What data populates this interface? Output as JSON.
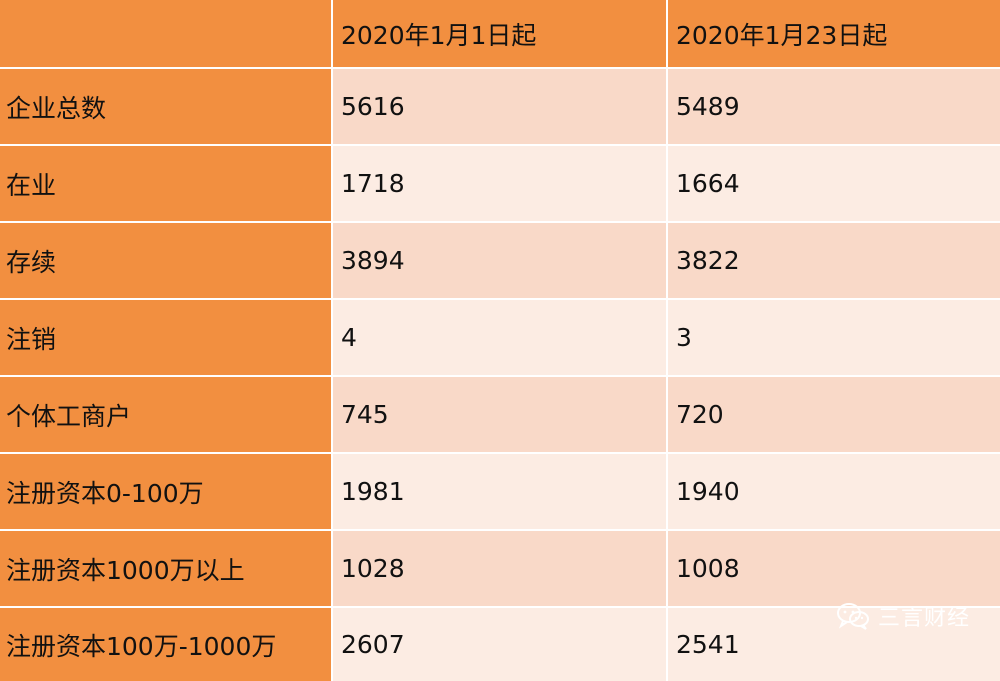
{
  "table": {
    "headers": [
      "",
      "2020年1月1日起",
      "2020年1月23日起"
    ],
    "rows": [
      {
        "label": "企业总数",
        "v1": "5616",
        "v2": "5489"
      },
      {
        "label": "在业",
        "v1": "1718",
        "v2": "1664"
      },
      {
        "label": "存续",
        "v1": "3894",
        "v2": "3822"
      },
      {
        "label": "注销",
        "v1": "4",
        "v2": "3"
      },
      {
        "label": "个体工商户",
        "v1": "745",
        "v2": "720"
      },
      {
        "label": "注册资本0-100万",
        "v1": "1981",
        "v2": "1940"
      },
      {
        "label": "注册资本1000万以上",
        "v1": "1028",
        "v2": "1008"
      },
      {
        "label": "注册资本100万-1000万",
        "v1": "2607",
        "v2": "2541"
      }
    ]
  },
  "watermark": {
    "text": "三言财经",
    "icon": "wechat-icon"
  },
  "colors": {
    "header_orange": "#f28f40",
    "row_dark": "#f9d9c8",
    "row_light": "#fcece3"
  }
}
